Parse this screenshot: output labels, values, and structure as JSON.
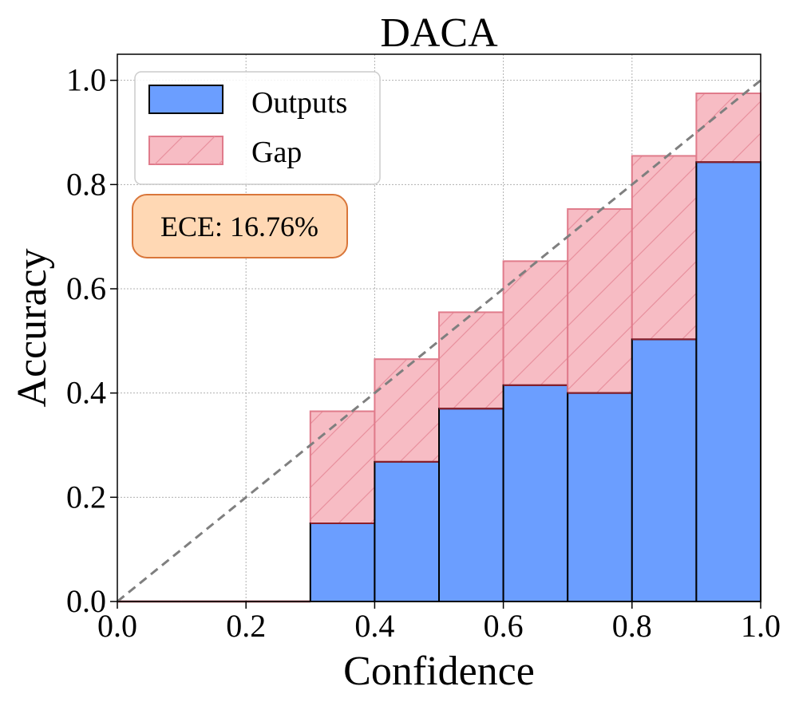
{
  "chart_data": {
    "type": "bar",
    "title": "DACA",
    "xlabel": "Confidence",
    "ylabel": "Accuracy",
    "xlim": [
      0.0,
      1.0
    ],
    "ylim": [
      0.0,
      1.05
    ],
    "xticks": [
      "0.0",
      "0.2",
      "0.4",
      "0.6",
      "0.8",
      "1.0"
    ],
    "yticks": [
      "0.0",
      "0.2",
      "0.4",
      "0.6",
      "0.8",
      "1.0"
    ],
    "grid": true,
    "legend_position": "top-left",
    "bins": [
      {
        "start": 0.0,
        "end": 0.1,
        "output": 0.0,
        "expected": 0.0
      },
      {
        "start": 0.1,
        "end": 0.2,
        "output": 0.0,
        "expected": 0.0
      },
      {
        "start": 0.2,
        "end": 0.3,
        "output": 0.0,
        "expected": 0.0
      },
      {
        "start": 0.3,
        "end": 0.4,
        "output": 0.15,
        "expected": 0.365
      },
      {
        "start": 0.4,
        "end": 0.5,
        "output": 0.268,
        "expected": 0.465
      },
      {
        "start": 0.5,
        "end": 0.6,
        "output": 0.37,
        "expected": 0.555
      },
      {
        "start": 0.6,
        "end": 0.7,
        "output": 0.415,
        "expected": 0.653
      },
      {
        "start": 0.7,
        "end": 0.8,
        "output": 0.4,
        "expected": 0.753
      },
      {
        "start": 0.8,
        "end": 0.9,
        "output": 0.503,
        "expected": 0.855
      },
      {
        "start": 0.9,
        "end": 1.0,
        "output": 0.843,
        "expected": 0.975
      }
    ],
    "series": [
      {
        "name": "Outputs",
        "color": "#6b9eff",
        "edge": "#000000"
      },
      {
        "name": "Gap",
        "color": "#f7bcc4",
        "edge": "#e07b8b",
        "hatch": "/"
      }
    ],
    "diagonal": {
      "from": [
        0,
        0
      ],
      "to": [
        1,
        1
      ],
      "style": "dashed",
      "color": "#7f7f7f"
    },
    "annotation": {
      "text": "ECE: 16.76%",
      "fill": "#ffd8b4",
      "edge": "#d9763a"
    }
  }
}
